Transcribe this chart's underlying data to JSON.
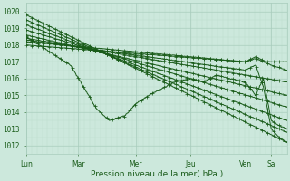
{
  "xlabel": "Pression niveau de la mer( hPa )",
  "bg_color": "#cce8dc",
  "line_color": "#1a5c1a",
  "grid_color_major": "#a8ccbc",
  "grid_color_minor": "#b8dcc8",
  "text_color": "#1a5c1a",
  "ylim": [
    1011.5,
    1020.5
  ],
  "yticks": [
    1012,
    1013,
    1014,
    1015,
    1016,
    1017,
    1018,
    1019,
    1020
  ],
  "days": [
    "Lun",
    "Mar",
    "Mer",
    "Jeu",
    "Ven",
    "Sa"
  ],
  "day_x": [
    0.0,
    0.2,
    0.42,
    0.63,
    0.84,
    0.94
  ]
}
